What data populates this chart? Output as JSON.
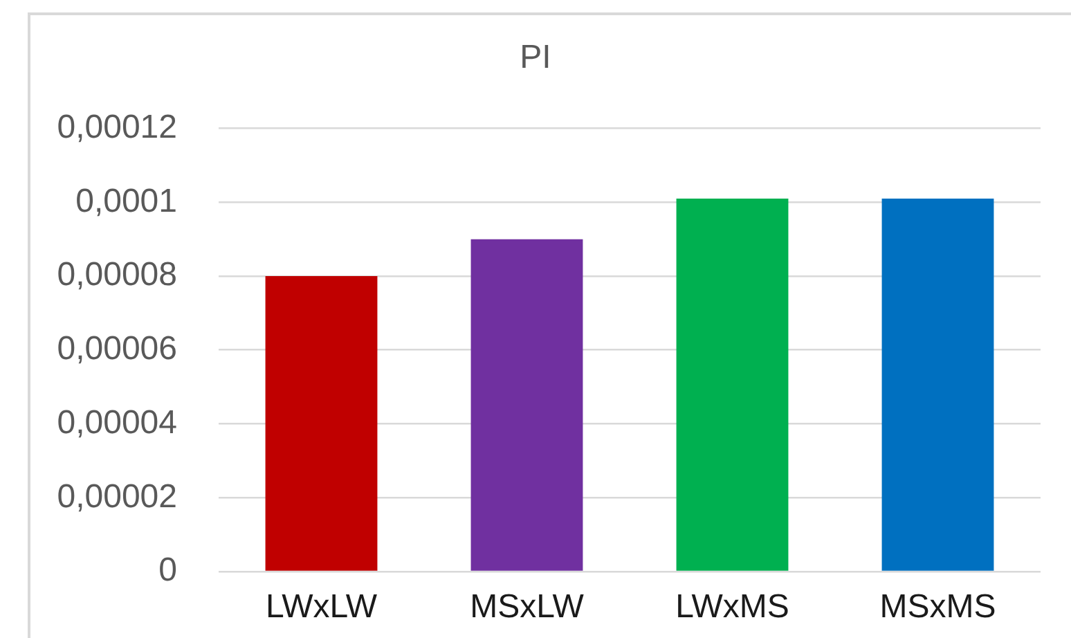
{
  "chart_data": {
    "type": "bar",
    "title": "PI",
    "categories": [
      "LWxLW",
      "MSxLW",
      "LWxMS",
      "MSxMS"
    ],
    "values": [
      8e-05,
      9e-05,
      0.000101,
      0.000101
    ],
    "colors": [
      "#c00000",
      "#7030a0",
      "#00b050",
      "#0070c0"
    ],
    "ylim": [
      0,
      0.00012
    ],
    "yticks": [
      0,
      {
        "value": 2e-05,
        "label": "0,00002"
      },
      {
        "value": 4e-05,
        "label": "0,00004"
      },
      {
        "value": 6e-05,
        "label": "0,00006"
      },
      {
        "value": 8e-05,
        "label": "0,00008"
      },
      {
        "value": 0.0001,
        "label": "0,0001"
      },
      {
        "value": 0.00012,
        "label": "0,00012"
      }
    ],
    "grid": "y",
    "legend": false
  }
}
